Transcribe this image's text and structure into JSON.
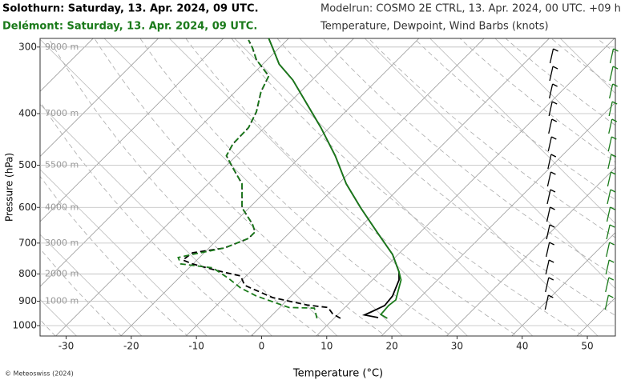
{
  "chart_data": {
    "type": "skewt",
    "header": {
      "station_titles": [
        "Solothurn: Saturday, 13. Apr. 2024, 09 UTC.",
        "Delémont: Saturday, 13. Apr. 2024, 09 UTC."
      ],
      "modelrun": "Modelrun: COSMO 2E CTRL, 13. Apr. 2024, 00 UTC. +09 h",
      "subtitle": "Temperature, Dewpoint, Wind Barbs (knots)"
    },
    "x_label": "Temperature (°C)",
    "y_label": "Pressure (hPa)",
    "credit": "© Meteoswiss (2024)",
    "xlim": [
      -34,
      54.3
    ],
    "xticks": [
      -30,
      -20,
      -10,
      0,
      10,
      20,
      30,
      40,
      50
    ],
    "ylim": [
      1046,
      289
    ],
    "yticks": [
      300,
      400,
      500,
      600,
      700,
      800,
      900,
      1000
    ],
    "log_y": true,
    "height_labels": [
      {
        "text": "9000 m",
        "pressure": 300
      },
      {
        "text": "7000 m",
        "pressure": 400
      },
      {
        "text": "5500 m",
        "pressure": 500
      },
      {
        "text": "4000 m",
        "pressure": 600
      },
      {
        "text": "3000 m",
        "pressure": 700
      },
      {
        "text": "2000 m",
        "pressure": 800
      },
      {
        "text": "1000 m",
        "pressure": 900
      }
    ],
    "series": [
      {
        "station": 0,
        "kind": "temperature",
        "color": "#000000",
        "dash": false,
        "pressure": [
          966,
          955,
          943,
          917,
          880,
          821,
          793,
          735,
          667,
          601,
          542,
          480,
          425,
          377,
          346,
          323,
          301,
          289
        ],
        "values": [
          17.9,
          15.8,
          16.8,
          18.9,
          20.1,
          21.1,
          21.1,
          20.1,
          17.7,
          15.2,
          13.0,
          11.3,
          9.1,
          6.6,
          4.8,
          2.7,
          1.7,
          1.1
        ]
      },
      {
        "station": 1,
        "kind": "temperature",
        "color": "#1a7a1a",
        "dash": false,
        "pressure": [
          969,
          953,
          917,
          895,
          821,
          793,
          735,
          667,
          601,
          542,
          480,
          425,
          377,
          346,
          323,
          301,
          289
        ],
        "values": [
          19.3,
          18.3,
          19.5,
          20.6,
          21.4,
          21.1,
          20.1,
          17.7,
          15.2,
          13.0,
          11.3,
          9.1,
          6.6,
          4.8,
          2.7,
          1.7,
          1.1
        ]
      },
      {
        "station": 0,
        "kind": "dewpoint",
        "color": "#000000",
        "dash": true,
        "pressure": [
          969,
          950,
          925,
          915,
          886,
          840,
          807,
          788,
          766,
          753,
          730,
          715,
          686,
          667,
          645,
          601,
          542,
          506,
          480,
          456,
          425,
          397,
          364,
          340,
          317,
          301,
          291
        ],
        "values": [
          12.1,
          10.9,
          10.2,
          7.0,
          1.7,
          -2.6,
          -3.2,
          -6.9,
          -10.6,
          -12.1,
          -10.6,
          -5.7,
          -2.0,
          -1.0,
          -1.4,
          -3.0,
          -3.0,
          -4.4,
          -5.4,
          -4.4,
          -2.0,
          -0.8,
          -0.1,
          1.1,
          -0.8,
          -1.4,
          -2.0
        ]
      },
      {
        "station": 1,
        "kind": "dewpoint",
        "color": "#1a7a1a",
        "dash": true,
        "pressure": [
          969,
          927,
          925,
          880,
          850,
          815,
          779,
          766,
          745,
          735,
          715,
          686,
          667,
          645,
          601,
          542,
          506,
          480,
          456,
          425,
          397,
          364,
          340,
          317,
          301,
          291
        ],
        "values": [
          8.5,
          8.1,
          4.2,
          -0.8,
          -3.2,
          -5.1,
          -7.5,
          -12.4,
          -12.8,
          -10.6,
          -5.7,
          -2.0,
          -1.0,
          -1.4,
          -3.0,
          -3.0,
          -4.4,
          -5.4,
          -4.4,
          -2.0,
          -0.8,
          -0.1,
          1.1,
          -0.8,
          -1.4,
          -2.0
        ]
      }
    ]
  }
}
